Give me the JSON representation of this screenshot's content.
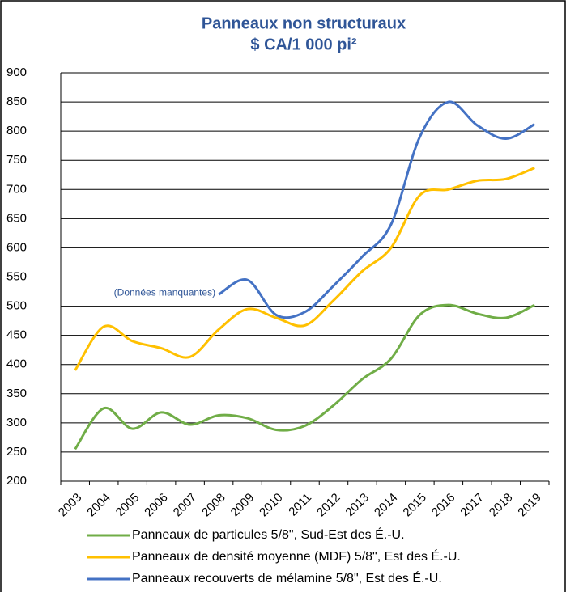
{
  "chart_data": {
    "type": "line",
    "title": "Panneaux non structuraux",
    "subtitle": "$ CA/1 000 pi²",
    "annotation": "(Données manquantes)",
    "categories": [
      "2003",
      "2004",
      "2005",
      "2006",
      "2007",
      "2008",
      "2009",
      "2010",
      "2011",
      "2012",
      "2013",
      "2014",
      "2015",
      "2016",
      "2017",
      "2018",
      "2019"
    ],
    "series": [
      {
        "name": "Panneaux de particules 5/8\", Sud-Est des É.-U.",
        "color": "#70ad47",
        "values": [
          255,
          325,
          290,
          318,
          297,
          313,
          308,
          288,
          295,
          330,
          375,
          410,
          485,
          502,
          487,
          480,
          502
        ]
      },
      {
        "name": "Panneaux de densité moyenne (MDF) 5/8\", Est des É.-U.",
        "color": "#ffc000",
        "values": [
          390,
          465,
          440,
          428,
          413,
          460,
          495,
          480,
          467,
          510,
          560,
          600,
          690,
          700,
          715,
          718,
          737
        ]
      },
      {
        "name": "Panneaux recouverts de mélamine 5/8\", Est des É.-U.",
        "color": "#4472c4",
        "values": [
          null,
          null,
          null,
          null,
          null,
          520,
          545,
          485,
          490,
          535,
          585,
          640,
          790,
          850,
          810,
          787,
          812
        ]
      }
    ],
    "ylim": [
      200,
      900
    ],
    "yticks": [
      200,
      250,
      300,
      350,
      400,
      450,
      500,
      550,
      600,
      650,
      700,
      750,
      800,
      850,
      900
    ],
    "grid": true
  }
}
